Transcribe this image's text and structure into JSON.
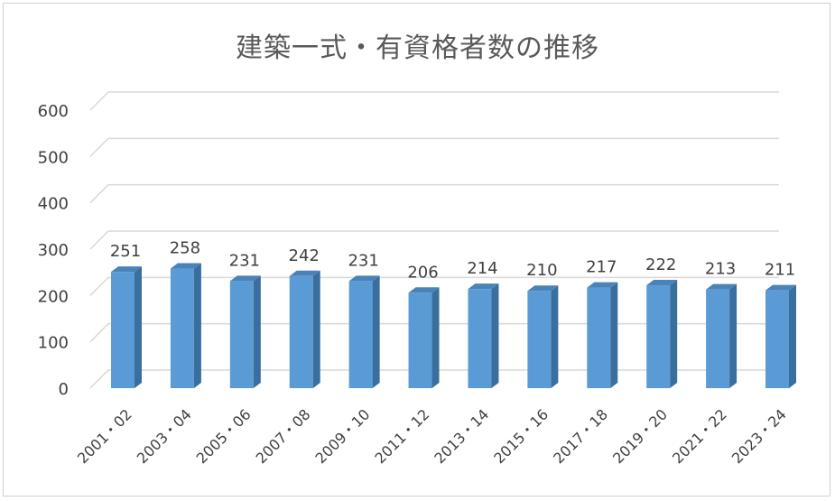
{
  "chart_data": {
    "type": "bar",
    "title": "建築一式・有資格者数の推移",
    "categories": [
      "2001・02",
      "2003・04",
      "2005・06",
      "2007・08",
      "2009・10",
      "2011・12",
      "2013・14",
      "2015・16",
      "2017・18",
      "2019・20",
      "2021・22",
      "2023・24"
    ],
    "values": [
      251,
      258,
      231,
      242,
      231,
      206,
      214,
      210,
      217,
      222,
      213,
      211
    ],
    "ylim": [
      0,
      600
    ],
    "yticks": [
      0,
      100,
      200,
      300,
      400,
      500,
      600
    ],
    "grid": true,
    "legend": "none",
    "style_3d": true,
    "colors": {
      "bar_front": "#5b9bd5",
      "bar_side": "#3a6e9f",
      "bar_top": "#4a83ba",
      "grid": "#d9d9d9",
      "text": "#404040"
    }
  }
}
